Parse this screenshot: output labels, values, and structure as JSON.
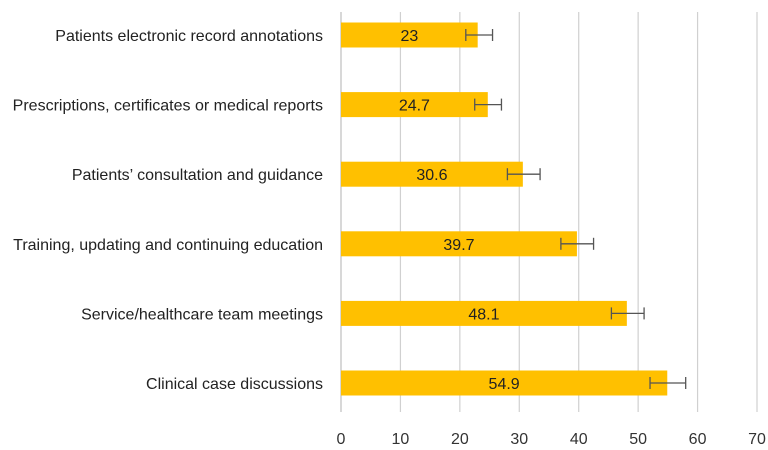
{
  "chart_data": {
    "type": "bar",
    "orientation": "horizontal",
    "title": "",
    "xlabel": "",
    "ylabel": "",
    "categories": [
      "Patients electronic record annotations",
      "Prescriptions, certificates or medical reports",
      "Patients’ consultation and guidance",
      "Training, updating and continuing education",
      "Service/healthcare team meetings",
      "Clinical case discussions"
    ],
    "values": [
      23,
      24.7,
      30.6,
      39.7,
      48.1,
      54.9
    ],
    "value_labels": [
      "23",
      "24.7",
      "30.6",
      "39.7",
      "48.1",
      "54.9"
    ],
    "error_bars": [
      [
        21,
        25.5
      ],
      [
        22.5,
        27
      ],
      [
        28,
        33.5
      ],
      [
        37,
        42.5
      ],
      [
        45.5,
        51
      ],
      [
        52,
        58
      ]
    ],
    "xlim": [
      0,
      70
    ],
    "xticks": [
      "0",
      "10",
      "20",
      "30",
      "40",
      "50",
      "60",
      "70"
    ],
    "grid": "vertical",
    "bar_color": "#FFC000",
    "error_color": "#555555",
    "grid_color": "#d0d0d0"
  }
}
